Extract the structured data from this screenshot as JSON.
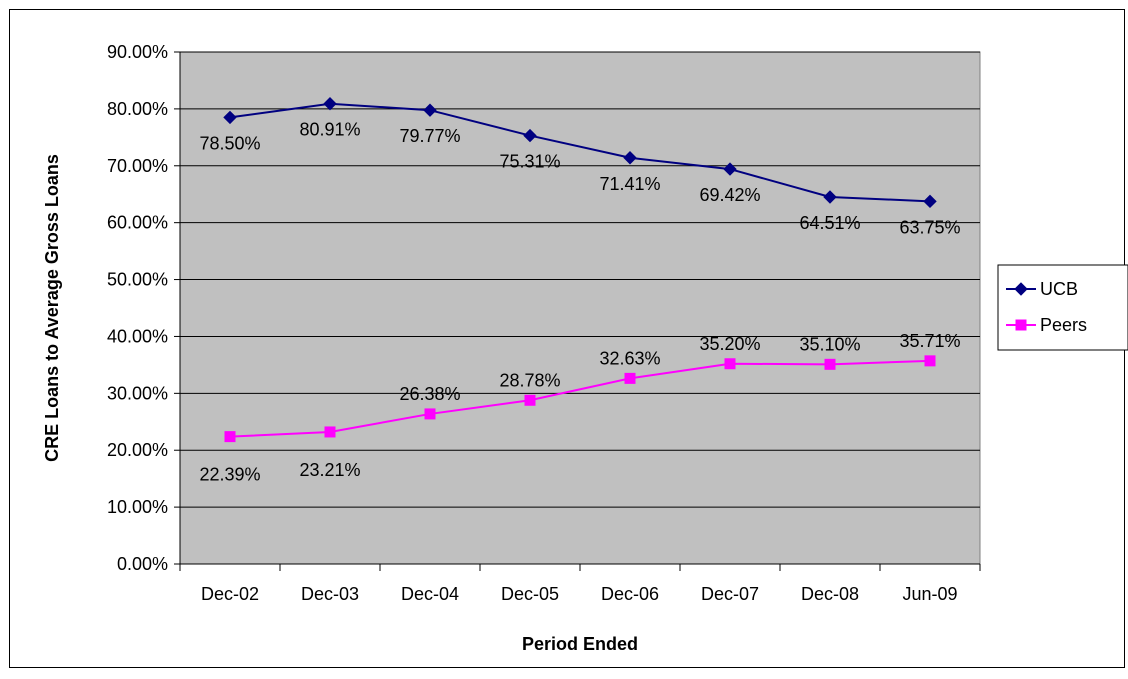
{
  "chart_data": {
    "type": "line",
    "xlabel": "Period Ended",
    "ylabel": "CRE Loans to Average Gross Loans",
    "categories": [
      "Dec-02",
      "Dec-03",
      "Dec-04",
      "Dec-05",
      "Dec-06",
      "Dec-07",
      "Dec-08",
      "Jun-09"
    ],
    "ylim": [
      0,
      90
    ],
    "yticks": [
      "0.00%",
      "10.00%",
      "20.00%",
      "30.00%",
      "40.00%",
      "50.00%",
      "60.00%",
      "70.00%",
      "80.00%",
      "90.00%"
    ],
    "grid": true,
    "legend_position": "right",
    "plot_background": "#c0c0c0",
    "series": [
      {
        "name": "UCB",
        "color": "#000080",
        "marker": "diamond",
        "values": [
          78.5,
          80.91,
          79.77,
          75.31,
          71.41,
          69.42,
          64.51,
          63.75
        ],
        "labels": [
          "78.50%",
          "80.91%",
          "79.77%",
          "75.31%",
          "71.41%",
          "69.42%",
          "64.51%",
          "63.75%"
        ]
      },
      {
        "name": "Peers",
        "color": "#ff00ff",
        "marker": "square",
        "values": [
          22.39,
          23.21,
          26.38,
          28.78,
          32.63,
          35.2,
          35.1,
          35.71
        ],
        "labels": [
          "22.39%",
          "23.21%",
          "26.38%",
          "28.78%",
          "32.63%",
          "35.20%",
          "35.10%",
          "35.71%"
        ]
      }
    ]
  }
}
